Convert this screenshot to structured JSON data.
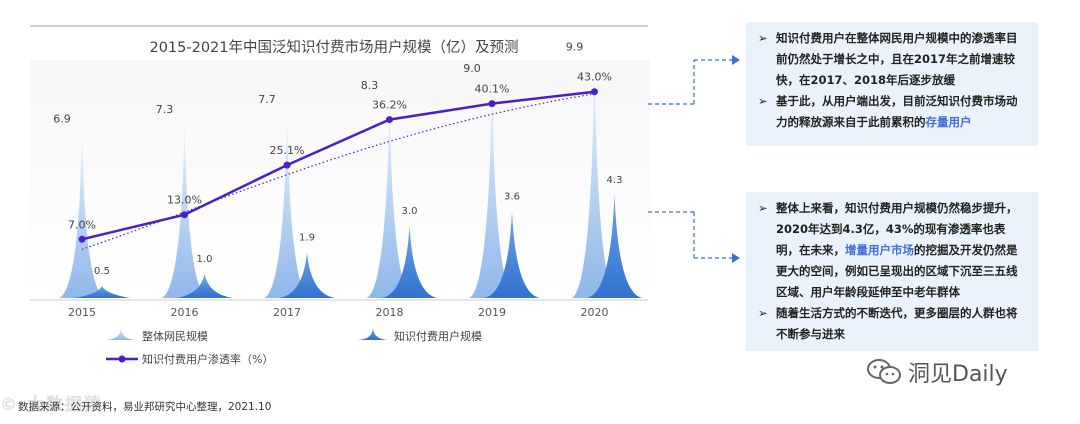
{
  "chart_data": {
    "type": "area",
    "title": "2015-2021年中国泛知识付费市场用户规模（亿）及预测",
    "categories": [
      "2015",
      "2016",
      "2017",
      "2018",
      "2019",
      "2020"
    ],
    "series": [
      {
        "name": "整体网民规模",
        "values": [
          6.9,
          7.3,
          7.7,
          8.3,
          9.0,
          9.9
        ],
        "color": "#a9c8f2",
        "labels": [
          "6.9",
          "7.3",
          "7.7",
          "8.3",
          "9.0",
          "9.9"
        ]
      },
      {
        "name": "知识付费用户规模",
        "values": [
          0.5,
          1.0,
          1.9,
          3.0,
          3.6,
          4.3
        ],
        "color": "#3a7fd6",
        "labels": [
          "0.5",
          "1.0",
          "1.9",
          "3.0",
          "3.6",
          "4.3"
        ]
      },
      {
        "name": "知识付费用户渗透率（%）",
        "values": [
          7.0,
          13.0,
          25.1,
          36.2,
          40.1,
          43.0
        ],
        "color": "#4a1fc9",
        "labels": [
          "7.0%",
          "13.0%",
          "25.1%",
          "36.2%",
          "40.1%",
          "43.0%"
        ]
      }
    ],
    "legend": [
      "整体网民规模",
      "知识付费用户规模",
      "知识付费用户渗透率（%）"
    ],
    "legend_position": "bottom",
    "trendline": true,
    "grid": false
  },
  "notes": {
    "box1": [
      {
        "text": "知识付费用户在整体网民用户规模中的渗透率目前仍然处于增长之中，且在2017年之前增速较快，在2017、2018年后逐步放缓"
      },
      {
        "pre": "基于此，从用户端出发，目前泛知识付费市场动力的释放源来自于此前累积的",
        "hl": "存量用户"
      }
    ],
    "box2": [
      {
        "pre": "整体上来看，知识付费用户规模仍然稳步提升，2020年达到4.3亿，43%的现有渗透率也表明，在未来，",
        "hl": "增量用户市场",
        "post": "的挖掘及开发仍然是更大的空间，例如已呈现出的区域下沉至三五线区域、用户年龄段延伸至中老年群体"
      },
      {
        "text": "随着生活方式的不断迭代，更多圈层的人群也将不断参与进来"
      }
    ],
    "bullet": "➢"
  },
  "source": "数据来源：公开资料，易业邦研究中心整理，2021.10",
  "watermark": "© 大数据猿",
  "brand": "洞见Daily",
  "colors": {
    "accent_purple": "#4a1fc9",
    "light_blue": "#a9c8f2",
    "dark_blue": "#3a7fd6",
    "note_bg": "#eaf3fb"
  }
}
